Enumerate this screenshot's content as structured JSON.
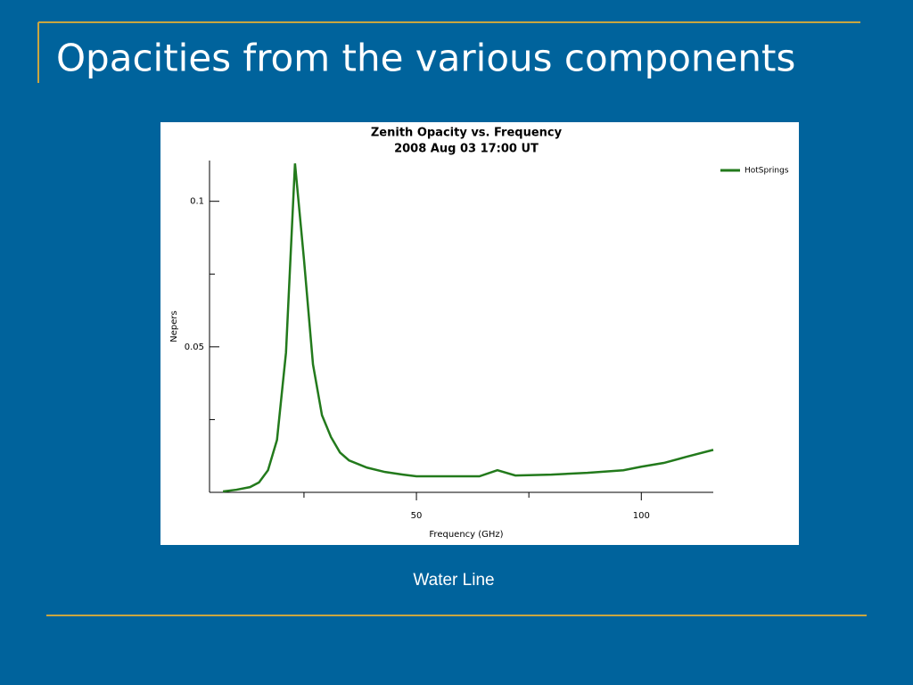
{
  "slide": {
    "title": "Opacities from the various components",
    "caption": "Water Line"
  },
  "chart_data": {
    "type": "line",
    "title": "Zenith Opacity vs. Frequency",
    "subtitle": "2008 Aug 03 17:00 UT",
    "x_label": "Frequency (GHz)",
    "y_label": "Nepers",
    "x": [
      7,
      10,
      13,
      15,
      17,
      19,
      21,
      23,
      25,
      27,
      29,
      31,
      33,
      35,
      39,
      43,
      47,
      50,
      57,
      64,
      68,
      72,
      80,
      88,
      96,
      100,
      105,
      110,
      116
    ],
    "series": [
      {
        "name": "HotSprings",
        "color": "#237a1c",
        "values": [
          0.0003,
          0.0009,
          0.0018,
          0.0034,
          0.0076,
          0.018,
          0.048,
          0.113,
          0.08,
          0.044,
          0.0265,
          0.019,
          0.0137,
          0.011,
          0.0085,
          0.007,
          0.0061,
          0.0055,
          0.0055,
          0.0055,
          0.0076,
          0.0058,
          0.0061,
          0.0067,
          0.0076,
          0.0088,
          0.0101,
          0.0122,
          0.0146
        ]
      }
    ],
    "xlim": [
      4,
      116
    ],
    "ylim": [
      0,
      0.114
    ],
    "xticks": [
      50,
      100
    ],
    "yticks": [
      0.05,
      0.1
    ],
    "x_minor_ticks": [
      25,
      75
    ],
    "y_minor_ticks": [
      0.025,
      0.075
    ],
    "legend": "top-right",
    "grid": false
  }
}
